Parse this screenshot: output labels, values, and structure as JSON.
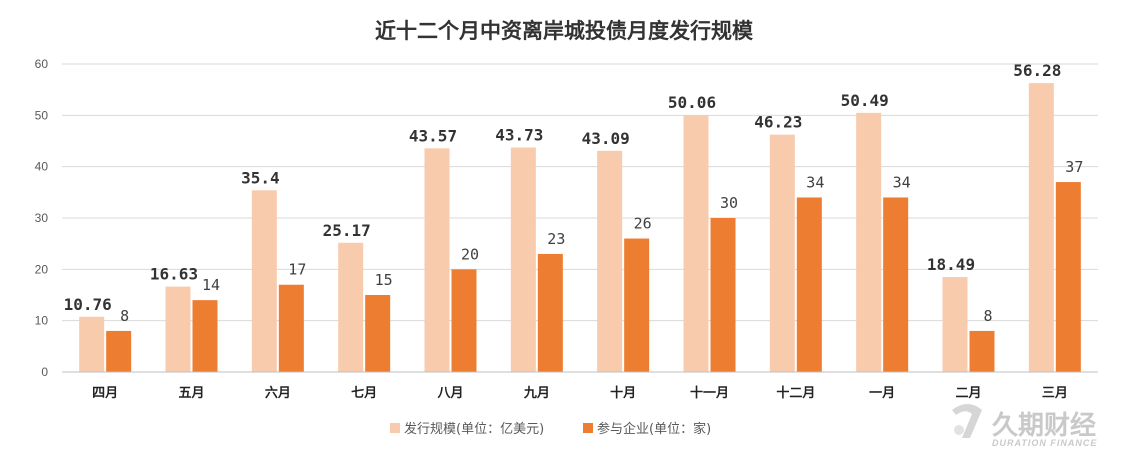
{
  "chart_data": {
    "type": "bar",
    "title": "近十二个月中资离岸城投债月度发行规模",
    "categories": [
      "四月",
      "五月",
      "六月",
      "七月",
      "八月",
      "九月",
      "十月",
      "十一月",
      "十二月",
      "一月",
      "二月",
      "三月"
    ],
    "series": [
      {
        "name": "发行规模(单位：亿美元)",
        "color": "#f8cbad",
        "values": [
          10.76,
          16.63,
          35.4,
          25.17,
          43.57,
          43.73,
          43.09,
          50.06,
          46.23,
          50.49,
          18.49,
          56.28
        ],
        "labels": [
          "10.76",
          "16.63",
          "35.4",
          "25.17",
          "43.57",
          "43.73",
          "43.09",
          "50.06",
          "46.23",
          "50.49",
          "18.49",
          "56.28"
        ]
      },
      {
        "name": "参与企业(单位：家)",
        "color": "#ed7d31",
        "values": [
          8,
          14,
          17,
          15,
          20,
          23,
          26,
          30,
          34,
          34,
          8,
          37
        ],
        "labels": [
          "8",
          "14",
          "17",
          "15",
          "20",
          "23",
          "26",
          "30",
          "34",
          "34",
          "8",
          "37"
        ]
      }
    ],
    "ylim": [
      0,
      60
    ],
    "yticks": [
      "0",
      "10",
      "20",
      "30",
      "40",
      "50",
      "60"
    ],
    "grid": true,
    "legend_position": "bottom"
  },
  "watermark": {
    "name": "久期财经",
    "sub": "DURATION FINANCE",
    "icon": "duration-finance-logo"
  }
}
